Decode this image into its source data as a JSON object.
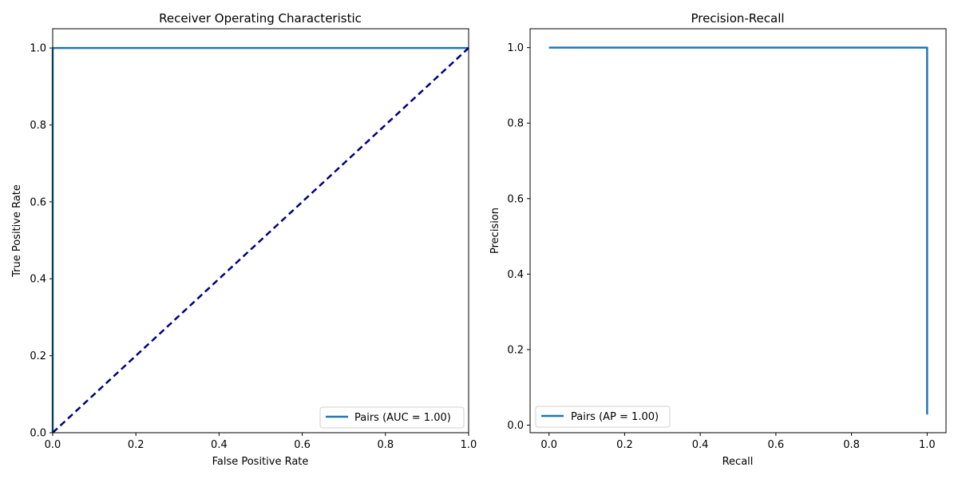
{
  "chart_data": [
    {
      "type": "line",
      "title": "Receiver Operating Characteristic",
      "xlabel": "False Positive Rate",
      "ylabel": "True Positive Rate",
      "xlim": [
        0.0,
        1.0
      ],
      "ylim": [
        0.0,
        1.05
      ],
      "xticks": [
        "0.0",
        "0.2",
        "0.4",
        "0.6",
        "0.8",
        "1.0"
      ],
      "yticks": [
        "0.0",
        "0.2",
        "0.4",
        "0.6",
        "0.8",
        "1.0"
      ],
      "grid": false,
      "legend_position": "lower-right",
      "series": [
        {
          "name": "Pairs (AUC = 1.00)",
          "color": "#1f77b4",
          "style": "solid",
          "x": [
            0.0,
            0.0,
            1.0
          ],
          "y": [
            0.0,
            1.0,
            1.0
          ]
        },
        {
          "color": "#000080",
          "style": "dashed",
          "x": [
            0.0,
            1.0
          ],
          "y": [
            0.0,
            1.0
          ]
        }
      ]
    },
    {
      "type": "line",
      "title": "Precision-Recall",
      "xlabel": "Recall",
      "ylabel": "Precision",
      "xlim": [
        -0.05,
        1.05
      ],
      "ylim": [
        -0.02,
        1.05
      ],
      "xticks": [
        "0.0",
        "0.2",
        "0.4",
        "0.6",
        "0.8",
        "1.0"
      ],
      "yticks": [
        "0.0",
        "0.2",
        "0.4",
        "0.6",
        "0.8",
        "1.0"
      ],
      "grid": false,
      "legend_position": "lower-left",
      "series": [
        {
          "name": "Pairs (AP = 1.00)",
          "color": "#1f77b4",
          "style": "solid",
          "x": [
            0.0,
            1.0,
            1.0
          ],
          "y": [
            1.0,
            1.0,
            0.028
          ]
        }
      ]
    }
  ]
}
